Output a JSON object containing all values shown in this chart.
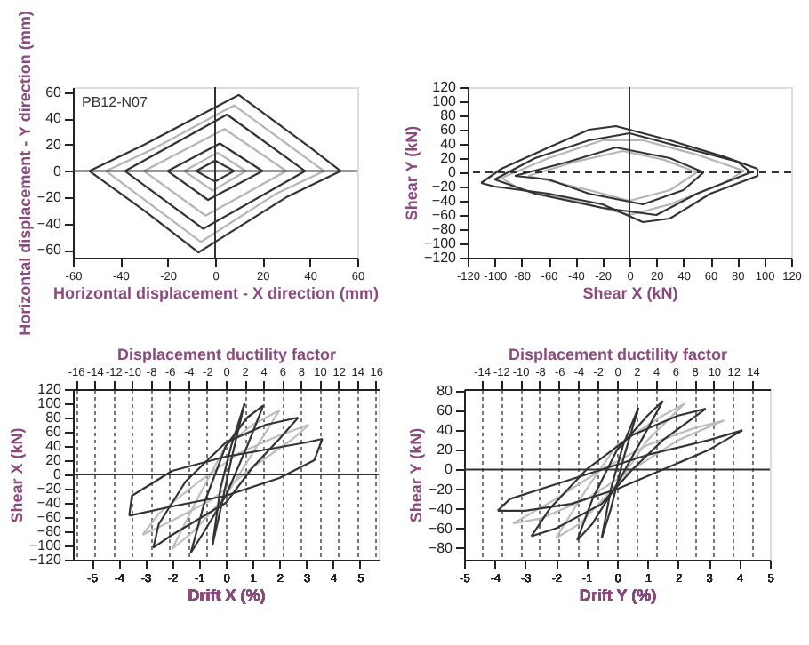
{
  "chart_data": [
    {
      "type": "line",
      "xlabel": "Horizontal displacement - X direction (mm)",
      "ylabel": "Horizontal displacement - Y direction (mm)",
      "xlim": [
        -60,
        60
      ],
      "ylim": [
        -66,
        64
      ],
      "xticks": [
        -60,
        -40,
        -20,
        0,
        20,
        40,
        60
      ],
      "yticks": [
        -60,
        -40,
        -20,
        0,
        20,
        40,
        60
      ],
      "grid": false,
      "annotations": [
        "PB12-N07"
      ],
      "ref_lines": [
        {
          "axis": "x",
          "value": 0
        },
        {
          "axis": "y",
          "value": 0
        }
      ],
      "series": [
        {
          "color": "#b5b5b5",
          "x": [
            -46,
            -26,
            8,
            46
          ],
          "values": [
            0,
            17,
            50,
            0
          ]
        },
        {
          "color": "#b5b5b5",
          "x": [
            46,
            26,
            -6,
            -46
          ],
          "values": [
            0,
            -17,
            -54,
            0
          ]
        },
        {
          "color": "#b5b5b5",
          "x": [
            -30,
            4,
            30
          ],
          "values": [
            0,
            32,
            0
          ]
        },
        {
          "color": "#b5b5b5",
          "x": [
            30,
            -4,
            -30
          ],
          "values": [
            0,
            -34,
            0
          ]
        },
        {
          "color": "#b5b5b5",
          "x": [
            -13,
            1,
            13
          ],
          "values": [
            0,
            14,
            0
          ]
        },
        {
          "color": "#b5b5b5",
          "x": [
            13,
            -1,
            -13
          ],
          "values": [
            0,
            -15,
            0
          ]
        },
        {
          "color": "#333333",
          "x": [
            -53,
            -30,
            10,
            40,
            53
          ],
          "values": [
            0,
            20,
            58,
            18,
            0
          ]
        },
        {
          "color": "#333333",
          "x": [
            53,
            30,
            -7,
            -30,
            -53
          ],
          "values": [
            0,
            -20,
            -62,
            -30,
            0
          ]
        },
        {
          "color": "#333333",
          "x": [
            -38,
            5,
            38
          ],
          "values": [
            0,
            43,
            0
          ]
        },
        {
          "color": "#333333",
          "x": [
            38,
            -5,
            -38
          ],
          "values": [
            0,
            -44,
            0
          ]
        },
        {
          "color": "#333333",
          "x": [
            -20,
            2,
            20
          ],
          "values": [
            0,
            21,
            0
          ]
        },
        {
          "color": "#333333",
          "x": [
            20,
            -3,
            -20
          ],
          "values": [
            0,
            -22,
            0
          ]
        },
        {
          "color": "#333333",
          "x": [
            -8,
            0,
            8
          ],
          "values": [
            0,
            8,
            0
          ]
        },
        {
          "color": "#333333",
          "x": [
            8,
            0,
            -8
          ],
          "values": [
            0,
            -8,
            0
          ]
        }
      ]
    },
    {
      "type": "line",
      "xlabel": "Shear X (kN)",
      "ylabel": "Shear Y (kN)",
      "xlim": [
        -120,
        120
      ],
      "ylim": [
        -120,
        120
      ],
      "xticks": [
        -120,
        -100,
        -80,
        -60,
        -40,
        -20,
        0,
        20,
        40,
        60,
        80,
        100,
        120
      ],
      "yticks": [
        -120,
        -100,
        -80,
        -60,
        -40,
        -20,
        0,
        20,
        40,
        60,
        80,
        100,
        120
      ],
      "grid": false,
      "ref_lines": [
        {
          "axis": "x",
          "value": 0
        },
        {
          "axis": "y",
          "value": 0,
          "line_style": "dashed"
        }
      ],
      "series": [
        {
          "color": "#b5b5b5",
          "x": [
            -95,
            -60,
            -20,
            10,
            50,
            85
          ],
          "values": [
            -8,
            20,
            45,
            45,
            25,
            2
          ]
        },
        {
          "color": "#b5b5b5",
          "x": [
            85,
            70,
            30,
            0,
            -40,
            -80,
            -95
          ],
          "values": [
            2,
            -15,
            -45,
            -60,
            -40,
            -25,
            -8
          ]
        },
        {
          "color": "#b5b5b5",
          "x": [
            -75,
            -40,
            -5,
            25,
            50
          ],
          "values": [
            -5,
            15,
            30,
            18,
            0
          ]
        },
        {
          "color": "#b5b5b5",
          "x": [
            50,
            30,
            0,
            -30,
            -75
          ],
          "values": [
            0,
            -25,
            -40,
            -25,
            -5
          ]
        },
        {
          "color": "#333333",
          "x": [
            -110,
            -95,
            -60,
            -30,
            -10,
            30,
            70,
            95
          ],
          "values": [
            -15,
            5,
            35,
            60,
            65,
            45,
            22,
            5
          ]
        },
        {
          "color": "#333333",
          "x": [
            95,
            95,
            60,
            30,
            10,
            -20,
            -60,
            -100,
            -110
          ],
          "values": [
            5,
            -5,
            -30,
            -65,
            -70,
            -45,
            -30,
            -20,
            -15
          ]
        },
        {
          "color": "#333333",
          "x": [
            -100,
            -70,
            -30,
            0,
            40,
            80,
            90
          ],
          "values": [
            -10,
            20,
            45,
            55,
            35,
            15,
            0
          ]
        },
        {
          "color": "#333333",
          "x": [
            90,
            50,
            20,
            -20,
            -70,
            -100
          ],
          "values": [
            0,
            -30,
            -60,
            -50,
            -30,
            -10
          ]
        },
        {
          "color": "#333333",
          "x": [
            -85,
            -45,
            -10,
            30,
            55
          ],
          "values": [
            -5,
            15,
            35,
            20,
            0
          ]
        },
        {
          "color": "#333333",
          "x": [
            55,
            40,
            10,
            -30,
            -60,
            -85
          ],
          "values": [
            0,
            -25,
            -45,
            -30,
            -10,
            -5
          ]
        }
      ]
    },
    {
      "type": "line",
      "x2label": "Displacement ductility factor",
      "xlabel": "Drift X (%)",
      "ylabel": "Shear X (kN)",
      "xlim": [
        -5.7,
        5.7
      ],
      "xticks": [
        -5,
        -4,
        -3,
        -2,
        -1,
        0,
        1,
        2,
        3,
        4,
        5
      ],
      "x2lim": [
        -16.3,
        16.3
      ],
      "x2ticks": [
        -16,
        -14,
        -12,
        -10,
        -8,
        -6,
        -4,
        -2,
        0,
        2,
        4,
        6,
        8,
        10,
        12,
        14,
        16
      ],
      "ylim": [
        -120,
        120
      ],
      "yticks": [
        -120,
        -100,
        -80,
        -60,
        -40,
        -20,
        0,
        20,
        40,
        60,
        80,
        100,
        120
      ],
      "grid": "x",
      "ref_lines": [
        {
          "axis": "y",
          "value": 0
        }
      ],
      "series": [
        {
          "color": "#bdbdbd",
          "x": [
            3.1,
            2,
            0.5,
            -1,
            -2.5,
            -3.1
          ],
          "values": [
            70,
            55,
            30,
            -10,
            -55,
            -85
          ]
        },
        {
          "color": "#bdbdbd",
          "x": [
            -3.1,
            -2,
            -0.5,
            1,
            2.5,
            3.1
          ],
          "values": [
            -85,
            -65,
            -35,
            10,
            50,
            70
          ]
        },
        {
          "color": "#bdbdbd",
          "x": [
            2.0,
            1,
            0,
            -1,
            -2.0
          ],
          "values": [
            90,
            70,
            40,
            -30,
            -105
          ]
        },
        {
          "color": "#bdbdbd",
          "x": [
            -2.0,
            -1.2,
            0,
            1,
            2.0
          ],
          "values": [
            -105,
            -80,
            -30,
            30,
            90
          ]
        },
        {
          "color": "#333333",
          "x": [
            3.6,
            3,
            1.5,
            0,
            -2,
            -3.5,
            -3.6
          ],
          "values": [
            50,
            45,
            35,
            25,
            5,
            -30,
            -58
          ]
        },
        {
          "color": "#333333",
          "x": [
            -3.6,
            -2,
            0,
            2,
            3.3,
            3.6
          ],
          "values": [
            -58,
            -45,
            -30,
            -5,
            20,
            50
          ]
        },
        {
          "color": "#333333",
          "x": [
            2.7,
            1.5,
            0,
            -1.5,
            -2.5,
            -2.7
          ],
          "values": [
            80,
            70,
            45,
            -10,
            -70,
            -103
          ]
        },
        {
          "color": "#333333",
          "x": [
            -2.7,
            -2,
            0,
            1,
            2,
            2.7
          ],
          "values": [
            -103,
            -85,
            -40,
            10,
            50,
            80
          ]
        },
        {
          "color": "#333333",
          "x": [
            1.4,
            0.8,
            0,
            -0.8,
            -1.3
          ],
          "values": [
            97,
            80,
            40,
            -40,
            -110
          ]
        },
        {
          "color": "#333333",
          "x": [
            -1.3,
            -0.8,
            0,
            0.8,
            1.4
          ],
          "values": [
            -110,
            -80,
            -30,
            40,
            97
          ]
        },
        {
          "color": "#333333",
          "x": [
            0.7,
            0.2,
            -0.2,
            -0.5
          ],
          "values": [
            100,
            40,
            -20,
            -100
          ]
        },
        {
          "color": "#333333",
          "x": [
            -0.5,
            -0.2,
            0.2,
            0.7
          ],
          "values": [
            -100,
            -50,
            20,
            100
          ]
        }
      ]
    },
    {
      "type": "line",
      "x2label": "Displacement ductility factor",
      "xlabel": "Drift Y (%)",
      "ylabel": "Shear Y (kN)",
      "xlim": [
        -5,
        5
      ],
      "xticks": [
        -5,
        -4,
        -3,
        -2,
        -1,
        0,
        1,
        2,
        3,
        4,
        5
      ],
      "x2lim": [
        -15.8,
        15.8
      ],
      "x2ticks": [
        -14,
        -12,
        -10,
        -8,
        -6,
        -4,
        -2,
        0,
        2,
        4,
        6,
        8,
        10,
        12,
        14
      ],
      "ylim": [
        -92,
        82
      ],
      "yticks": [
        -80,
        -60,
        -40,
        -20,
        0,
        20,
        40,
        60,
        80
      ],
      "grid": "x",
      "ref_lines": [
        {
          "axis": "y",
          "value": 0
        }
      ],
      "series": [
        {
          "color": "#bdbdbd",
          "x": [
            3.5,
            2.5,
            1,
            -0.5,
            -2,
            -3.4
          ],
          "values": [
            50,
            42,
            25,
            0,
            -30,
            -55
          ]
        },
        {
          "color": "#bdbdbd",
          "x": [
            -3.4,
            -2.5,
            -1,
            0.5,
            2,
            3.5
          ],
          "values": [
            -55,
            -50,
            -30,
            0,
            30,
            50
          ]
        },
        {
          "color": "#bdbdbd",
          "x": [
            2.2,
            1.5,
            0,
            -1,
            -2.0
          ],
          "values": [
            67,
            55,
            25,
            -20,
            -70
          ]
        },
        {
          "color": "#bdbdbd",
          "x": [
            -2.0,
            -1.2,
            0,
            1,
            2.2
          ],
          "values": [
            -70,
            -55,
            -15,
            30,
            67
          ]
        },
        {
          "color": "#333333",
          "x": [
            4.1,
            3,
            1,
            -1,
            -2.5,
            -3.5,
            -3.9
          ],
          "values": [
            40,
            30,
            15,
            -5,
            -20,
            -30,
            -42
          ]
        },
        {
          "color": "#333333",
          "x": [
            -3.9,
            -3,
            -1.5,
            0,
            1.5,
            3,
            4.1
          ],
          "values": [
            -42,
            -42,
            -35,
            -20,
            0,
            20,
            40
          ]
        },
        {
          "color": "#333333",
          "x": [
            2.9,
            2,
            0.5,
            -1,
            -2.2,
            -2.8
          ],
          "values": [
            62,
            55,
            35,
            0,
            -40,
            -68
          ]
        },
        {
          "color": "#333333",
          "x": [
            -2.8,
            -2,
            -0.5,
            0.5,
            1.5,
            2.9
          ],
          "values": [
            -68,
            -60,
            -35,
            0,
            30,
            62
          ]
        },
        {
          "color": "#333333",
          "x": [
            1.5,
            1,
            0,
            -0.8,
            -1.3
          ],
          "values": [
            70,
            55,
            20,
            -30,
            -72
          ]
        },
        {
          "color": "#333333",
          "x": [
            -1.3,
            -0.8,
            0,
            0.8,
            1.5
          ],
          "values": [
            -72,
            -55,
            -15,
            30,
            70
          ]
        },
        {
          "color": "#333333",
          "x": [
            0.7,
            0.2,
            -0.2,
            -0.5
          ],
          "values": [
            63,
            25,
            -20,
            -70
          ]
        },
        {
          "color": "#333333",
          "x": [
            -0.5,
            -0.2,
            0.2,
            0.7
          ],
          "values": [
            -70,
            -40,
            10,
            63
          ]
        }
      ]
    }
  ]
}
